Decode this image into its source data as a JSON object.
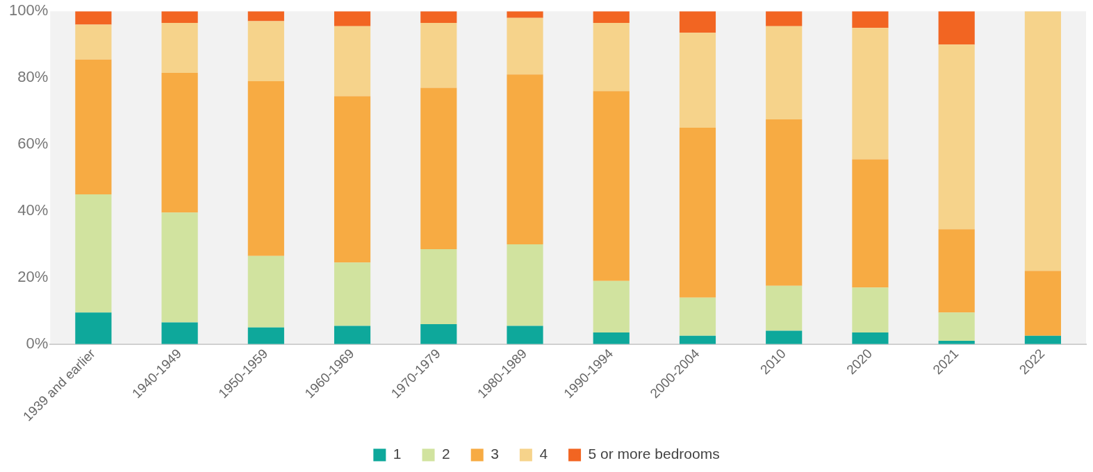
{
  "chart_data": {
    "type": "bar",
    "stacked": true,
    "categories": [
      "1939 and earlier",
      "1940-1949",
      "1950-1959",
      "1960-1969",
      "1970-1979",
      "1980-1989",
      "1990-1994",
      "2000-2004",
      "2010",
      "2020",
      "2021",
      "2022"
    ],
    "series": [
      {
        "name": "1",
        "color": "#0ea89b",
        "values": [
          9.5,
          6.5,
          5,
          5.5,
          6,
          5.5,
          3.5,
          2.5,
          4,
          3.5,
          1,
          2.5
        ]
      },
      {
        "name": "2",
        "color": "#d1e39f",
        "values": [
          35.5,
          33,
          21.5,
          19,
          22.5,
          24.5,
          15.5,
          11.5,
          13.5,
          13.5,
          8.5,
          0
        ]
      },
      {
        "name": "3",
        "color": "#f7ab43",
        "values": [
          40.5,
          42,
          52.5,
          50,
          48.5,
          51,
          57,
          51,
          50,
          38.5,
          25,
          19.5
        ]
      },
      {
        "name": "4",
        "color": "#f6d38b",
        "values": [
          10.5,
          15,
          18,
          21,
          19.5,
          17,
          20.5,
          28.5,
          28,
          39.5,
          55.5,
          78
        ]
      },
      {
        "name": "5 or more bedrooms",
        "color": "#f26522",
        "values": [
          4,
          3.5,
          3,
          4.5,
          3.5,
          2,
          3.5,
          6.5,
          4.5,
          5,
          10,
          0
        ]
      }
    ],
    "ylim": [
      0,
      100
    ],
    "yticks": [
      {
        "value": 0,
        "label": "0%"
      },
      {
        "value": 20,
        "label": "20%"
      },
      {
        "value": 40,
        "label": "40%"
      },
      {
        "value": 60,
        "label": "60%"
      },
      {
        "value": 80,
        "label": "80%"
      },
      {
        "value": 100,
        "label": "100%"
      }
    ],
    "grid": false,
    "legend": "bottom"
  }
}
